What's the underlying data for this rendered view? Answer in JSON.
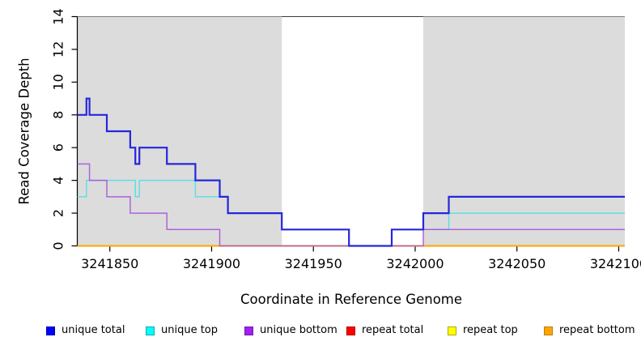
{
  "chart_data": {
    "type": "line",
    "subtype": "step",
    "title": "",
    "xlabel": "Coordinate in Reference Genome",
    "ylabel": "Read Coverage Depth",
    "xlim": [
      3241834,
      3242103
    ],
    "ylim": [
      0,
      14
    ],
    "xticks": [
      3241850,
      3241900,
      3241950,
      3242000,
      3242050,
      3242100
    ],
    "yticks": [
      0,
      2,
      4,
      6,
      8,
      10,
      12,
      14
    ],
    "grid": false,
    "legend_position": "bottom",
    "plot_background": "#ffffff",
    "background_regions": [
      {
        "name": "masked-region-left",
        "x0": 3241834,
        "x1": 3241934.5,
        "color": "#dcdcdc"
      },
      {
        "name": "masked-region-right",
        "x0": 3242004,
        "x1": 3242103,
        "color": "#dcdcdc"
      }
    ],
    "series": [
      {
        "name": "unique total",
        "color": "#2626dd",
        "opacity": 1,
        "width": 2.2,
        "legend_fill": "#0000ff",
        "legend_border": "#0000b0",
        "end": 3242103,
        "steps": [
          [
            3241834,
            8
          ],
          [
            3241838.5,
            9
          ],
          [
            3241840,
            8
          ],
          [
            3241848.5,
            7
          ],
          [
            3241860,
            6
          ],
          [
            3241862.5,
            5
          ],
          [
            3241864.5,
            6
          ],
          [
            3241878,
            5
          ],
          [
            3241892,
            4
          ],
          [
            3241904,
            3
          ],
          [
            3241908,
            2
          ],
          [
            3241934.5,
            1
          ],
          [
            3241967.5,
            0
          ],
          [
            3241988.5,
            1
          ],
          [
            3242004,
            2
          ],
          [
            3242016.5,
            3
          ]
        ]
      },
      {
        "name": "unique top",
        "color": "#40e0e6",
        "opacity": 0.8,
        "width": 1.5,
        "legend_fill": "#00ffff",
        "legend_border": "#00aab2",
        "end": 3242103,
        "steps": [
          [
            3241834,
            3
          ],
          [
            3241838.5,
            4
          ],
          [
            3241862.5,
            3
          ],
          [
            3241864.5,
            4
          ],
          [
            3241892,
            3
          ],
          [
            3241908,
            2
          ],
          [
            3241934.5,
            1
          ],
          [
            3241967.5,
            0
          ],
          [
            3241988.5,
            1
          ],
          [
            3242016.5,
            2
          ]
        ]
      },
      {
        "name": "unique bottom",
        "color": "#a64ddb",
        "opacity": 0.85,
        "width": 1.5,
        "legend_fill": "#a020f0",
        "legend_border": "#7517b2",
        "end": 3242103,
        "steps": [
          [
            3241834,
            5
          ],
          [
            3241840,
            4
          ],
          [
            3241848.5,
            3
          ],
          [
            3241860,
            2
          ],
          [
            3241878,
            1
          ],
          [
            3241904,
            0
          ],
          [
            3242004,
            1
          ]
        ]
      },
      {
        "name": "repeat total",
        "color": "#dd2222",
        "opacity": 1,
        "width": 1.4,
        "legend_fill": "#ff0000",
        "legend_border": "#b00000",
        "end": 3242103,
        "steps": [
          [
            3241834,
            0
          ]
        ]
      },
      {
        "name": "repeat top",
        "color": "#f2f200",
        "opacity": 1,
        "width": 1.4,
        "legend_fill": "#ffff00",
        "legend_border": "#b0a800",
        "end": 3242103,
        "steps": [
          [
            3241834,
            0
          ]
        ]
      },
      {
        "name": "repeat bottom",
        "color": "#ffa500",
        "opacity": 1,
        "width": 2,
        "legend_fill": "#ffa500",
        "legend_border": "#c27c00",
        "end": 3242103,
        "steps": [
          [
            3241834,
            0
          ]
        ]
      }
    ],
    "draw_order": [
      "repeat total",
      "repeat top",
      "repeat bottom",
      "unique top",
      "unique bottom",
      "unique total"
    ],
    "axis_color": "#000000",
    "top_border_color": "#7e7e7e",
    "top_border_gap_color": "#3a3a3a"
  }
}
